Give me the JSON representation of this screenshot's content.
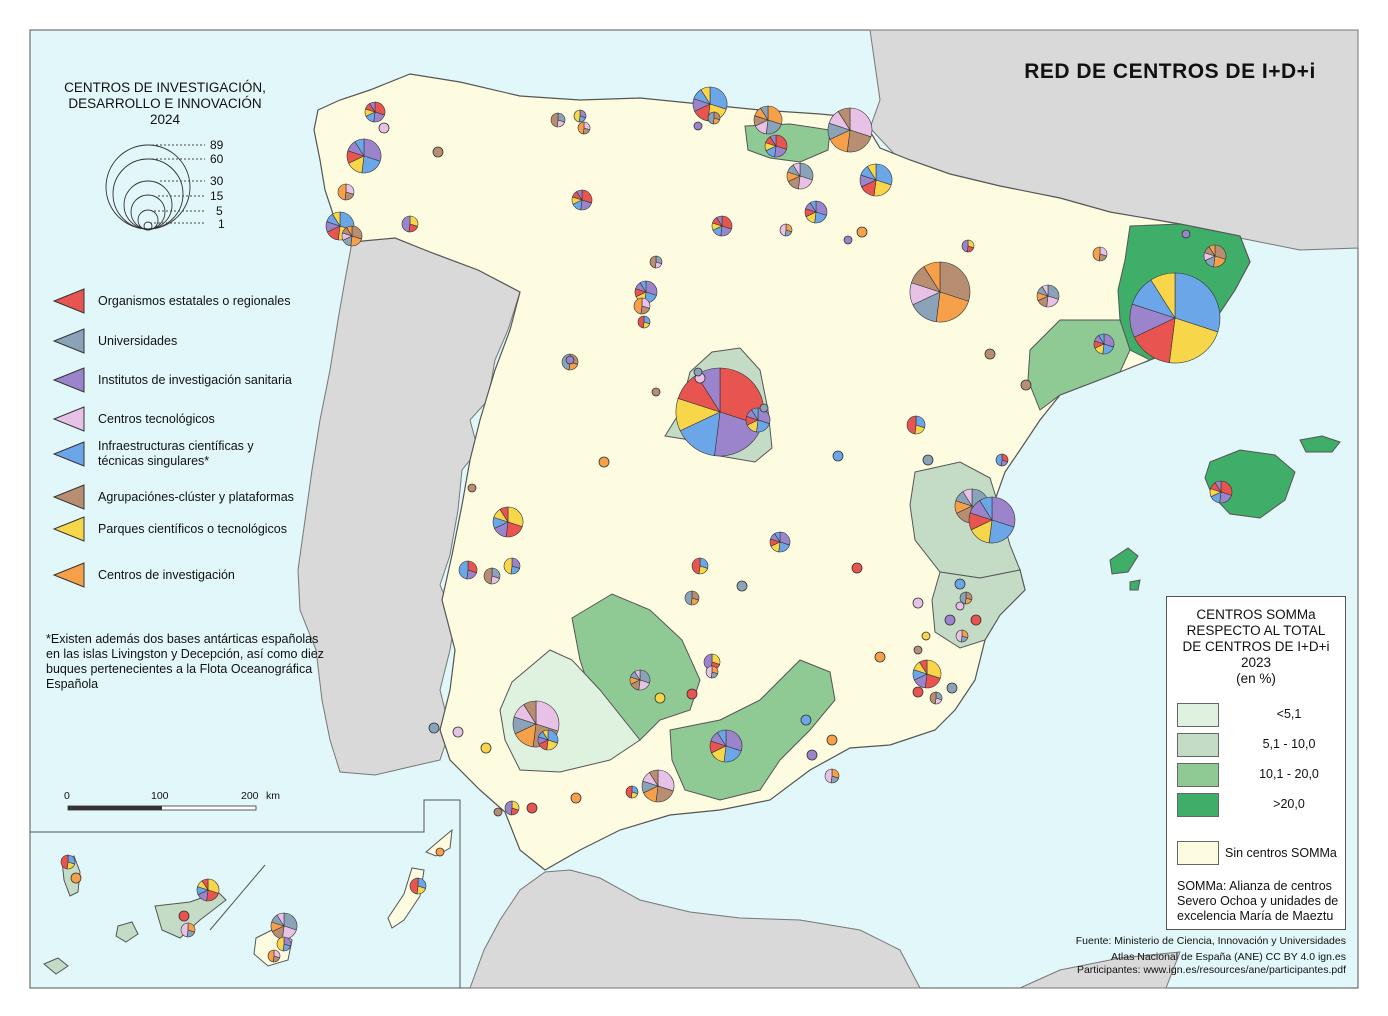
{
  "map": {
    "title": "RED DE CENTROS DE I+D+i",
    "colors": {
      "sea": "#e2f7f9",
      "land": "#fdfbe0",
      "foreign": "#d9d9d9",
      "border": "#555555"
    }
  },
  "legend_sizes": {
    "title": "CENTROS DE INVESTIGACIÓN, DESARROLLO E INNOVACIÓN",
    "year": "2024",
    "values": [
      "89",
      "60",
      "30",
      "15",
      "5",
      "1"
    ]
  },
  "categories": [
    {
      "label": "Organismos estatales o regionales",
      "color": "#e8544f",
      "icon": "triangle-marker"
    },
    {
      "label": "Universidades",
      "color": "#8aa3b8",
      "icon": "triangle-marker"
    },
    {
      "label": "Institutos de investigación sanitaria",
      "color": "#9b84cc",
      "icon": "triangle-marker"
    },
    {
      "label": "Centros tecnológicos",
      "color": "#e7c2e6",
      "icon": "triangle-marker"
    },
    {
      "label": "Infraestructuras científicas y técnicas singulares*",
      "color": "#6aa6e8",
      "icon": "triangle-marker"
    },
    {
      "label": "Agrupaciónes-clúster y plataformas",
      "color": "#b88e73",
      "icon": "triangle-marker"
    },
    {
      "label": "Parques científicos o tecnológicos",
      "color": "#f7d64a",
      "icon": "triangle-marker"
    },
    {
      "label": "Centros de investigación",
      "color": "#f6a04a",
      "icon": "triangle-marker"
    }
  ],
  "note": "*Existen además dos bases antárticas españolas en las islas Livingston y Decepción, así como diez buques pertenecientes a la Flota Oceanográfica Española",
  "scale_bar": {
    "ticks": [
      "0",
      "100",
      "200"
    ],
    "unit": "km"
  },
  "somma_legend": {
    "title": "CENTROS SOMMa RESPECTO AL TOTAL DE CENTROS DE I+D+i",
    "year": "2023",
    "unit": "(en %)",
    "classes": [
      {
        "label": "<5,1",
        "color": "#dff2df"
      },
      {
        "label": "5,1 - 10,0",
        "color": "#c4dcc6"
      },
      {
        "label": "10,1 - 20,0",
        "color": "#8fca94"
      },
      {
        "label": ">20,0",
        "color": "#3fae68"
      }
    ],
    "none": {
      "label": "Sin centros SOMMa",
      "color": "#fdfbe0"
    },
    "definition": "SOMMa: Alianza de centros Severo Ochoa y unidades de excelencia María de Maeztu"
  },
  "sources": {
    "fuente": "Fuente: Ministerio de Ciencia, Innovación y Universidades",
    "atlas": "Atlas Nacional de España (ANE) CC BY 4.0 ign.es",
    "participantes": "Participantes: www.ign.es/resources/ane/participantes.pdf"
  },
  "somma_regions": [
    {
      "name": "Cataluña",
      "class": ">20,0"
    },
    {
      "name": "Illes Balears",
      "class": ">20,0"
    },
    {
      "name": "Cantabria",
      "class": "10,1 - 20,0"
    },
    {
      "name": "Tarragona",
      "class": "10,1 - 20,0"
    },
    {
      "name": "Castellón",
      "class": "10,1 - 20,0"
    },
    {
      "name": "Granada",
      "class": "10,1 - 20,0"
    },
    {
      "name": "Jaén",
      "class": "10,1 - 20,0"
    },
    {
      "name": "Madrid",
      "class": "5,1 - 10,0"
    },
    {
      "name": "Valencia",
      "class": "5,1 - 10,0"
    },
    {
      "name": "Alicante",
      "class": "5,1 - 10,0"
    },
    {
      "name": "Santa Cruz de Tenerife",
      "class": "5,1 - 10,0"
    },
    {
      "name": "Sevilla",
      "class": "<5,1"
    }
  ]
}
